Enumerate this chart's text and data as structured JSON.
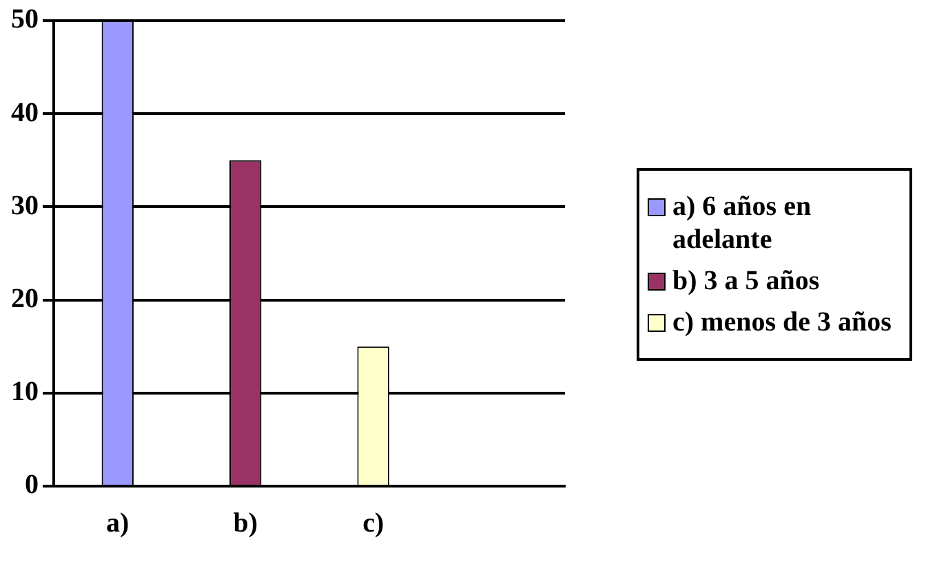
{
  "chart_data": {
    "type": "bar",
    "categories": [
      "a)",
      "b)",
      "c)",
      null
    ],
    "series": [
      {
        "name": "a) 6 años en adelante",
        "color": "#9999ff",
        "values": [
          50,
          null,
          null,
          null
        ]
      },
      {
        "name": "b) 3 a 5 años",
        "color": "#993366",
        "values": [
          null,
          35,
          null,
          null
        ]
      },
      {
        "name": "c) menos de 3 años",
        "color": "#ffffcc",
        "values": [
          null,
          null,
          15,
          null
        ]
      }
    ],
    "stacked": true,
    "ylim": [
      0,
      50
    ],
    "yticks": [
      0,
      10,
      20,
      30,
      40,
      50
    ],
    "grid": "y",
    "legend": "right"
  }
}
